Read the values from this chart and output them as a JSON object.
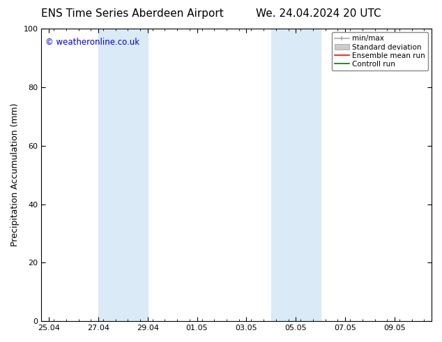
{
  "title_left": "ENS Time Series Aberdeen Airport",
  "title_right": "We. 24.04.2024 20 UTC",
  "ylabel": "Precipitation Accumulation (mm)",
  "watermark": "© weatheronline.co.uk",
  "watermark_color": "#0000cc",
  "ylim": [
    0,
    100
  ],
  "yticks": [
    0,
    20,
    40,
    60,
    80,
    100
  ],
  "background_color": "#ffffff",
  "plot_bg_color": "#ffffff",
  "shaded_band_color": "#daeaf7",
  "x_tick_labels": [
    "25.04",
    "27.04",
    "29.04",
    "01.05",
    "03.05",
    "05.05",
    "07.05",
    "09.05"
  ],
  "x_tick_positions": [
    0,
    2,
    4,
    6,
    8,
    10,
    12,
    14
  ],
  "x_minor_tick_spacing": 0.5,
  "xlim": [
    -0.3,
    15.5
  ],
  "band1_xstart": 2.0,
  "band1_xend": 4.0,
  "band2_xstart": 9.0,
  "band2_xend": 11.0,
  "legend_entries": [
    {
      "label": "min/max",
      "color": "#aaaaaa",
      "type": "errorbar"
    },
    {
      "label": "Standard deviation",
      "color": "#cccccc",
      "type": "bar"
    },
    {
      "label": "Ensemble mean run",
      "color": "#ff0000",
      "type": "line"
    },
    {
      "label": "Controll run",
      "color": "#007700",
      "type": "line"
    }
  ],
  "title_fontsize": 11,
  "axis_label_fontsize": 9,
  "tick_fontsize": 8,
  "legend_fontsize": 7.5,
  "border_color": "#000000"
}
